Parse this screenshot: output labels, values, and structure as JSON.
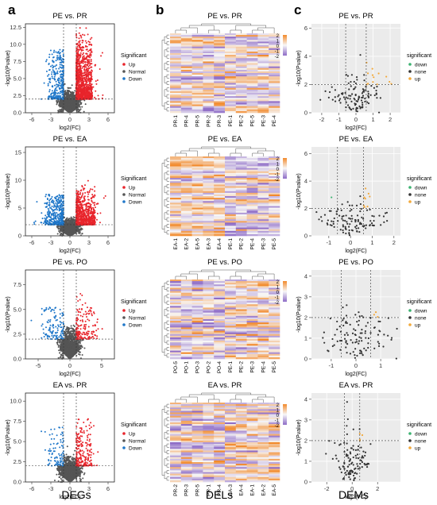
{
  "panel_letters": [
    "a",
    "b",
    "c"
  ],
  "column_titles": [
    "DEGs",
    "DELs",
    "DEMs"
  ],
  "colors": {
    "deg_up": "#e8242b",
    "deg_normal": "#555555",
    "deg_down": "#1f77c9",
    "dem_down": "#3cb371",
    "dem_none": "#333333",
    "dem_up": "#f2a93b",
    "heat_high": "#f28a2c",
    "heat_mid": "#f7f7f7",
    "heat_low": "#8e6cc7",
    "dem_bg": "#ebebeb"
  },
  "chart_data": [
    {
      "type": "scatter",
      "panel": "a",
      "title": "PE vs. PR",
      "xlabel": "log2(FC)",
      "ylabel": "-log10(Pvalue)",
      "xticks": [
        -6,
        -3,
        0,
        3,
        6
      ],
      "yticks": [
        0.0,
        2.5,
        5.0,
        7.5,
        10.0,
        12.5
      ],
      "xlim": [
        -7,
        7
      ],
      "ylim": [
        0,
        13
      ],
      "thresholds": {
        "x": [
          -1,
          1
        ],
        "y": 2
      },
      "legend": {
        "title": "Significant",
        "entries": [
          "Up",
          "Normal",
          "Down"
        ],
        "position": "right"
      },
      "counts": {
        "up": 1200,
        "normal": 1500,
        "down": 320
      },
      "spread": {
        "up_x": [
          1,
          3.5
        ],
        "down_x": [
          -3.5,
          -1
        ],
        "ymax": 12.5
      }
    },
    {
      "type": "scatter",
      "panel": "a",
      "title": "PE vs. EA",
      "xlabel": "log2(FC)",
      "ylabel": "-log10(Pvalue)",
      "xticks": [
        -6,
        -3,
        0,
        3,
        6
      ],
      "yticks": [
        0,
        5,
        10,
        15
      ],
      "xlim": [
        -7,
        7
      ],
      "ylim": [
        0,
        16
      ],
      "thresholds": {
        "x": [
          -1,
          1
        ],
        "y": 2
      },
      "legend": {
        "title": "Significant",
        "entries": [
          "Up",
          "Normal",
          "Down"
        ],
        "position": "right"
      },
      "counts": {
        "up": 700,
        "normal": 1400,
        "down": 380
      },
      "spread": {
        "up_x": [
          1,
          4
        ],
        "down_x": [
          -4,
          -1
        ],
        "ymax": 10
      }
    },
    {
      "type": "scatter",
      "panel": "a",
      "title": "PE vs. PO",
      "xlabel": "log2(FC)",
      "ylabel": "-log10(Pvalue)",
      "xticks": [
        -5,
        0,
        5
      ],
      "yticks": [
        0.0,
        2.5,
        5.0,
        7.5
      ],
      "xlim": [
        -7,
        7
      ],
      "ylim": [
        0,
        9
      ],
      "thresholds": {
        "x": [
          -1,
          1
        ],
        "y": 2
      },
      "legend": {
        "title": "Significant",
        "entries": [
          "Up",
          "Normal",
          "Down"
        ],
        "position": "right"
      },
      "counts": {
        "up": 160,
        "normal": 1500,
        "down": 120
      },
      "spread": {
        "up_x": [
          1,
          4.5
        ],
        "down_x": [
          -4.5,
          -1
        ],
        "ymax": 7
      }
    },
    {
      "type": "scatter",
      "panel": "a",
      "title": "EA vs. PR",
      "xlabel": "log2(FC)",
      "ylabel": "-log10(Pvalue)",
      "xticks": [
        -6,
        -3,
        0,
        3,
        6
      ],
      "yticks": [
        0.0,
        2.5,
        5.0,
        7.5,
        10.0
      ],
      "xlim": [
        -7,
        7
      ],
      "ylim": [
        0,
        11
      ],
      "thresholds": {
        "x": [
          -1,
          1
        ],
        "y": 2
      },
      "legend": {
        "title": "Significant",
        "entries": [
          "Up",
          "Normal",
          "Down"
        ],
        "position": "right"
      },
      "counts": {
        "up": 220,
        "normal": 1500,
        "down": 90
      },
      "spread": {
        "up_x": [
          1,
          3.5
        ],
        "down_x": [
          -3.5,
          -1
        ],
        "ymax": 9
      }
    },
    {
      "type": "heatmap",
      "panel": "b",
      "title": "PE vs. PR",
      "columns": [
        "PR-1",
        "PR-4",
        "PR-5",
        "PR-2",
        "PR-3",
        "PE-1",
        "PE-2",
        "PE-5",
        "PE-3",
        "PE-4"
      ],
      "rows": 48,
      "colorbar": {
        "ticks": [
          2,
          1,
          0,
          -1,
          -2
        ]
      }
    },
    {
      "type": "heatmap",
      "panel": "b",
      "title": "PE vs. EA",
      "columns": [
        "EA-1",
        "EA-2",
        "EA-5",
        "EA-3",
        "EA-4",
        "PE-1",
        "PE-2",
        "PE-4",
        "PE-3",
        "PE-5"
      ],
      "rows": 48,
      "colorbar": {
        "ticks": [
          2,
          1,
          0,
          -1,
          -2
        ]
      }
    },
    {
      "type": "heatmap",
      "panel": "b",
      "title": "PE vs. PO",
      "columns": [
        "PO-5",
        "PO-1",
        "PO-3",
        "PO-2",
        "PO-4",
        "PE-1",
        "PE-2",
        "PE-3",
        "PE-4",
        "PE-5"
      ],
      "rows": 48,
      "colorbar": {
        "ticks": [
          2,
          1,
          0,
          -1,
          -2
        ]
      }
    },
    {
      "type": "heatmap",
      "panel": "b",
      "title": "EA vs. PR",
      "columns": [
        "PR-2",
        "PR-3",
        "PR-5",
        "PR-1",
        "PR-4",
        "EA-3",
        "EA-4",
        "EA-1",
        "EA-2",
        "EA-5"
      ],
      "rows": 48,
      "colorbar": {
        "ticks": [
          2,
          1,
          0,
          -1,
          -2
        ]
      }
    },
    {
      "type": "scatter",
      "panel": "c",
      "title": "PE vs. PR",
      "xlabel": "log2(FC)",
      "ylabel": "-log10(Pvalue)",
      "xticks": [
        -2,
        -1,
        0,
        1,
        2
      ],
      "yticks": [
        0,
        2,
        4,
        6
      ],
      "xlim": [
        -2.6,
        2.6
      ],
      "ylim": [
        0,
        6.3
      ],
      "thresholds": {
        "x": [
          -0.6,
          0.6
        ],
        "y": 2
      },
      "legend": {
        "title": "significant",
        "entries": [
          "down",
          "none",
          "up"
        ],
        "position": "right"
      },
      "counts": {
        "up": 14,
        "normal": 110,
        "down": 0
      },
      "spread": {
        "up_x": [
          0.6,
          1.8
        ],
        "down_x": [
          -1.8,
          -0.6
        ],
        "ymax": 5.8
      }
    },
    {
      "type": "scatter",
      "panel": "c",
      "title": "PE vs. EA",
      "xlabel": "log2(FC)",
      "ylabel": "-log10(Pvalue)",
      "xticks": [
        -1,
        0,
        1,
        2
      ],
      "yticks": [
        0,
        2,
        4,
        6
      ],
      "xlim": [
        -1.8,
        2.3
      ],
      "ylim": [
        0,
        6.5
      ],
      "thresholds": {
        "x": [
          -0.6,
          0.6
        ],
        "y": 2
      },
      "legend": {
        "title": "significant",
        "entries": [
          "down",
          "none",
          "up"
        ],
        "position": "right"
      },
      "counts": {
        "up": 8,
        "normal": 110,
        "down": 1
      },
      "spread": {
        "up_x": [
          0.6,
          1.6
        ],
        "down_x": [
          -1.6,
          -0.6
        ],
        "ymax": 5.5
      }
    },
    {
      "type": "scatter",
      "panel": "c",
      "title": "PE vs. PO",
      "xlabel": "log2(FC)",
      "ylabel": "-log10(Pvalue)",
      "xticks": [
        -1,
        0,
        1
      ],
      "yticks": [
        0,
        1,
        2,
        3,
        4
      ],
      "xlim": [
        -1.8,
        1.8
      ],
      "ylim": [
        0,
        4.3
      ],
      "thresholds": {
        "x": [
          -0.6,
          0.6
        ],
        "y": 2
      },
      "legend": {
        "title": "significant",
        "entries": [
          "down",
          "none",
          "up"
        ],
        "position": "right"
      },
      "counts": {
        "up": 3,
        "normal": 110,
        "down": 0
      },
      "spread": {
        "up_x": [
          0.6,
          1.2
        ],
        "down_x": [
          -1.2,
          -0.6
        ],
        "ymax": 2.5
      }
    },
    {
      "type": "scatter",
      "panel": "c",
      "title": "EA vs. PR",
      "xlabel": "log2(FC)",
      "ylabel": "-log10(Pvalue)",
      "xticks": [
        -2,
        0,
        2
      ],
      "yticks": [
        0,
        1,
        2,
        3,
        4
      ],
      "xlim": [
        -3.2,
        3.8
      ],
      "ylim": [
        0,
        4.3
      ],
      "thresholds": {
        "x": [
          -0.6,
          0.6
        ],
        "y": 2
      },
      "legend": {
        "title": "significant",
        "entries": [
          "down",
          "none",
          "up"
        ],
        "position": "right"
      },
      "counts": {
        "up": 4,
        "normal": 110,
        "down": 0
      },
      "spread": {
        "up_x": [
          0.6,
          1.5
        ],
        "down_x": [
          -1.5,
          -0.6
        ],
        "ymax": 3
      }
    }
  ]
}
